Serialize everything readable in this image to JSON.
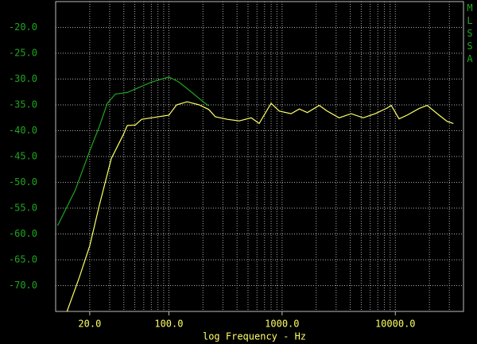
{
  "chart_data": {
    "type": "line",
    "x_label": "log Frequency - Hz",
    "side_label": "MLSSA",
    "log_x": true,
    "grid": true,
    "xlim": [
      10,
      40000
    ],
    "xticks": [
      {
        "value": 20,
        "label": "20.0"
      },
      {
        "value": 100,
        "label": "100.0"
      },
      {
        "value": 1000,
        "label": "1000.0"
      },
      {
        "value": 10000,
        "label": "10000.0"
      }
    ],
    "xgrid": [
      20,
      30,
      40,
      50,
      60,
      70,
      80,
      90,
      100,
      200,
      300,
      400,
      500,
      600,
      700,
      800,
      900,
      1000,
      2000,
      3000,
      4000,
      5000,
      6000,
      7000,
      8000,
      9000,
      10000,
      20000,
      30000
    ],
    "ylim": [
      -75,
      -15
    ],
    "yticks": [
      {
        "value": -20,
        "label": "-20.0"
      },
      {
        "value": -25,
        "label": "-25.0"
      },
      {
        "value": -30,
        "label": "-30.0"
      },
      {
        "value": -35,
        "label": "-35.0"
      },
      {
        "value": -40,
        "label": "-40.0"
      },
      {
        "value": -45,
        "label": "-45.0"
      },
      {
        "value": -50,
        "label": "-50.0"
      },
      {
        "value": -55,
        "label": "-55.0"
      },
      {
        "value": -60,
        "label": "-60.0"
      },
      {
        "value": -65,
        "label": "-65.0"
      },
      {
        "value": -70,
        "label": "-70.0"
      }
    ],
    "series": [
      {
        "color": "#1fa51f",
        "x": [
          10.4,
          14.9,
          20,
          24.2,
          28.6,
          33.7,
          42.9,
          54.8,
          69.9,
          100,
          123,
          156,
          201,
          225
        ],
        "values": [
          -58.4,
          -51.5,
          -43.9,
          -39.3,
          -34.7,
          -32.9,
          -32.6,
          -31.6,
          -30.6,
          -29.6,
          -30.6,
          -32.4,
          -34.4,
          -35.2
        ]
      },
      {
        "color": "#ffff66",
        "x": [
          12.6,
          16.2,
          20,
          24.2,
          31,
          39.5,
          42.9,
          50.6,
          57.5,
          69.9,
          100,
          117,
          145,
          185,
          225,
          257,
          328,
          418,
          534,
          627,
          800,
          944,
          1200,
          1420,
          1670,
          2130,
          2500,
          3190,
          4070,
          5200,
          6650,
          8500,
          9200,
          10800,
          12700,
          16200,
          19100,
          24400,
          28700,
          32600
        ],
        "values": [
          -75,
          -68.4,
          -62.3,
          -54.6,
          -45.4,
          -40.8,
          -39,
          -38.9,
          -37.8,
          -37.5,
          -37,
          -35,
          -34.4,
          -35,
          -35.9,
          -37.3,
          -37.8,
          -38.1,
          -37.5,
          -38.6,
          -34.7,
          -36.2,
          -36.7,
          -35.8,
          -36.5,
          -35.1,
          -36.2,
          -37.5,
          -36.7,
          -37.5,
          -36.7,
          -35.6,
          -35.1,
          -37.7,
          -37,
          -35.7,
          -35.1,
          -37,
          -38.2,
          -38.6
        ]
      }
    ]
  }
}
